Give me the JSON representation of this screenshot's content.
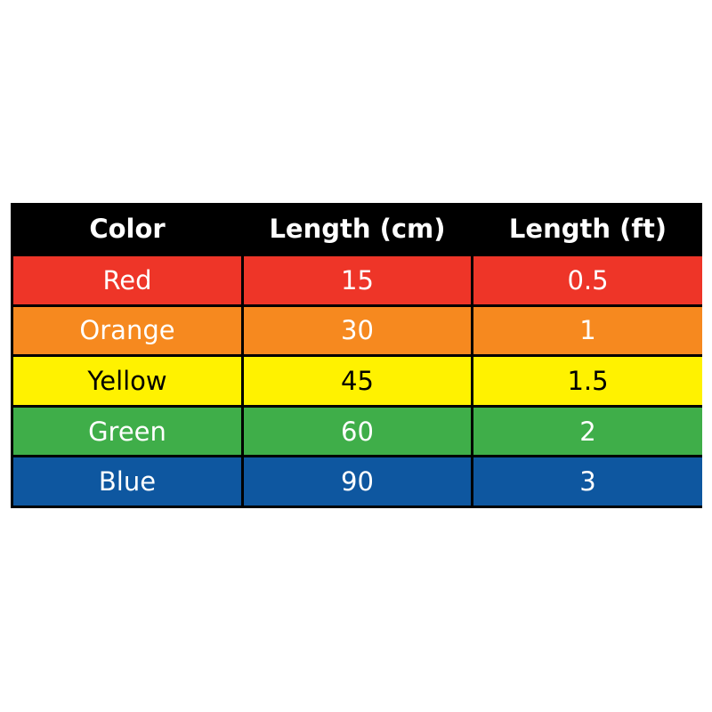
{
  "headers": [
    "Color",
    "Length (cm)",
    "Length (ft)"
  ],
  "rows": [
    {
      "color": "Red",
      "cm": "15",
      "ft": "0.5",
      "bg": "#EE3528",
      "fg": "#FFFFFF"
    },
    {
      "color": "Orange",
      "cm": "30",
      "ft": "1",
      "bg": "#F6891F",
      "fg": "#FFFFFF"
    },
    {
      "color": "Yellow",
      "cm": "45",
      "ft": "1.5",
      "bg": "#FFF200",
      "fg": "#000000"
    },
    {
      "color": "Green",
      "cm": "60",
      "ft": "2",
      "bg": "#3FAE49",
      "fg": "#FFFFFF"
    },
    {
      "color": "Blue",
      "cm": "90",
      "ft": "3",
      "bg": "#0E57A0",
      "fg": "#FFFFFF"
    }
  ]
}
